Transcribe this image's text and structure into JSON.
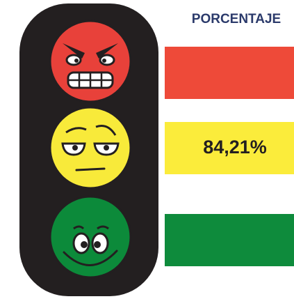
{
  "title": "PORCENTAJE",
  "yellow_value": "84,21%"
}
